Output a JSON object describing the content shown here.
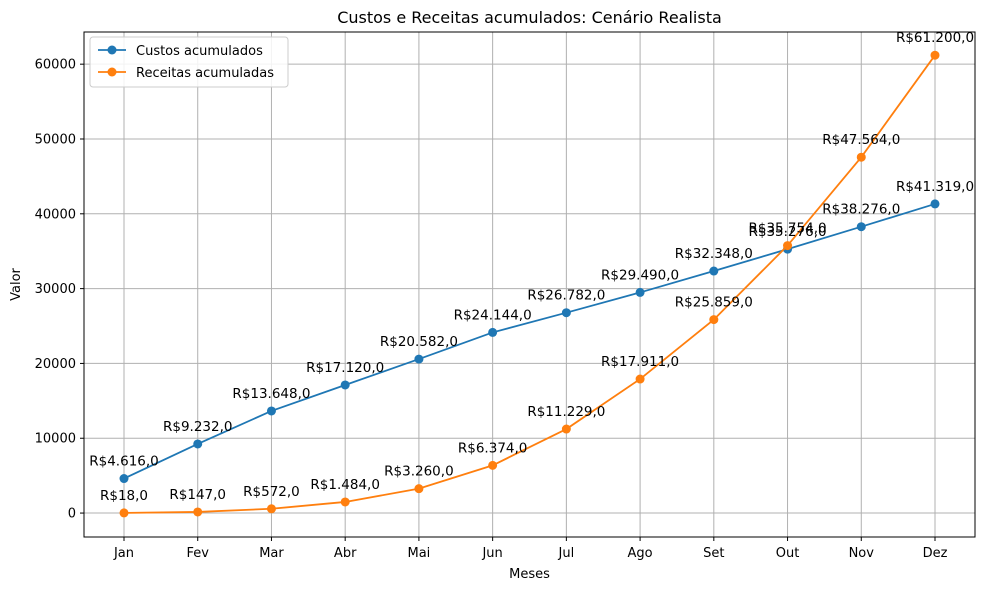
{
  "chart_data": {
    "type": "line",
    "title": "Custos e Receitas acumulados: Cenário Realista",
    "xlabel": "Meses",
    "ylabel": "Valor",
    "categories": [
      "Jan",
      "Fev",
      "Mar",
      "Abr",
      "Mai",
      "Jun",
      "Jul",
      "Ago",
      "Set",
      "Out",
      "Nov",
      "Dez"
    ],
    "ylim": [
      -3200,
      64300
    ],
    "yticks": [
      0,
      10000,
      20000,
      30000,
      40000,
      50000,
      60000
    ],
    "grid": true,
    "legend_position": "top-left",
    "series": [
      {
        "name": "Custos acumulados",
        "color": "#1f77b4",
        "values": [
          4616,
          9232,
          13648,
          17120,
          20582,
          24144,
          26782,
          29490,
          32348,
          35276,
          38276,
          41319
        ],
        "labels": [
          "R$4.616,0",
          "R$9.232,0",
          "R$13.648,0",
          "R$17.120,0",
          "R$20.582,0",
          "R$24.144,0",
          "R$26.782,0",
          "R$29.490,0",
          "R$32.348,0",
          "R$35.276,0",
          "R$38.276,0",
          "R$41.319,0"
        ]
      },
      {
        "name": "Receitas acumuladas",
        "color": "#ff7f0e",
        "values": [
          18,
          147,
          572,
          1484,
          3260,
          6374,
          11229,
          17911,
          25859,
          35754,
          47564,
          61200
        ],
        "labels": [
          "R$18,0",
          "R$147,0",
          "R$572,0",
          "R$1.484,0",
          "R$3.260,0",
          "R$6.374,0",
          "R$11.229,0",
          "R$17.911,0",
          "R$25.859,0",
          "R$35.754,0",
          "R$47.564,0",
          "R$61.200,0"
        ]
      }
    ]
  }
}
